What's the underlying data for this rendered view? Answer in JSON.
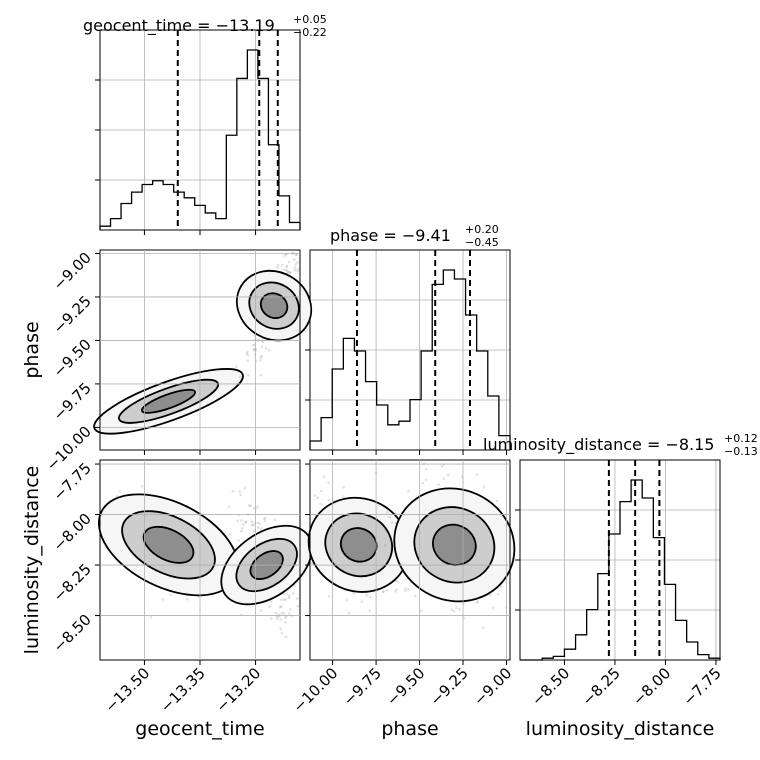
{
  "chart_data": {
    "type": "corner",
    "parameters": [
      "geocent_time",
      "phase",
      "luminosity_distance"
    ],
    "axis_labels": {
      "geocent_time": "geocent_time",
      "phase": "phase",
      "luminosity_distance": "luminosity_distance"
    },
    "titles": [
      {
        "param": "geocent_time",
        "prefix": "geocent_time = −13.19",
        "plus": "+0.05",
        "minus": "−0.22"
      },
      {
        "param": "phase",
        "prefix": "phase = −9.41",
        "plus": "+0.20",
        "minus": "−0.45"
      },
      {
        "param": "luminosity_distance",
        "prefix": "luminosity_distance = −8.15",
        "plus": "+0.12",
        "minus": "−0.13"
      }
    ],
    "ranges": {
      "geocent_time": [
        -13.62,
        -13.08
      ],
      "phase": [
        -10.13,
        -8.98
      ],
      "luminosity_distance": [
        -8.72,
        -7.73
      ]
    },
    "ticks": {
      "geocent_time": [
        {
          "v": -13.5,
          "label": "−13.50"
        },
        {
          "v": -13.35,
          "label": "−13.35"
        },
        {
          "v": -13.2,
          "label": "−13.20"
        }
      ],
      "phase": [
        {
          "v": -10.0,
          "label": "−10.00"
        },
        {
          "v": -9.75,
          "label": "−9.75"
        },
        {
          "v": -9.5,
          "label": "−9.50"
        },
        {
          "v": -9.25,
          "label": "−9.25"
        },
        {
          "v": -9.0,
          "label": "−9.00"
        }
      ],
      "luminosity_distance": [
        {
          "v": -8.5,
          "label": "−8.50"
        },
        {
          "v": -8.25,
          "label": "−8.25"
        },
        {
          "v": -8.0,
          "label": "−8.00"
        },
        {
          "v": -7.75,
          "label": "−7.75"
        }
      ]
    },
    "y_tick_labels": {
      "phase": [
        "−9.00",
        "−9.25",
        "−9.50",
        "−9.75",
        "−10.00"
      ],
      "luminosity_distance": [
        "−7.75",
        "−8.00",
        "−8.25",
        "−8.50"
      ]
    },
    "histograms": {
      "geocent_time": [
        0.02,
        0.06,
        0.14,
        0.2,
        0.24,
        0.26,
        0.24,
        0.2,
        0.17,
        0.13,
        0.09,
        0.06,
        0.5,
        0.8,
        0.95,
        0.8,
        0.45,
        0.18,
        0.04
      ],
      "phase": [
        0.05,
        0.18,
        0.45,
        0.62,
        0.55,
        0.38,
        0.25,
        0.14,
        0.16,
        0.28,
        0.55,
        0.92,
        1.0,
        0.95,
        0.75,
        0.55,
        0.3,
        0.08
      ],
      "luminosity_distance": [
        0.0,
        0.0,
        0.01,
        0.02,
        0.06,
        0.14,
        0.28,
        0.48,
        0.7,
        0.88,
        1.0,
        0.9,
        0.68,
        0.42,
        0.22,
        0.1,
        0.03,
        0.01
      ]
    },
    "quantiles": {
      "geocent_time": [
        -13.41,
        -13.19,
        -13.14
      ],
      "phase": [
        -9.86,
        -9.41,
        -9.21
      ],
      "luminosity_distance": [
        -8.28,
        -8.15,
        -8.03
      ]
    },
    "scatter_clusters": [
      {
        "panel": "phase_vs_geocent_time",
        "x": [
          -13.6,
          -13.27
        ],
        "y": [
          -10.0,
          -9.7
        ],
        "n": 180
      },
      {
        "panel": "phase_vs_geocent_time",
        "x": [
          -13.22,
          -13.08
        ],
        "y": [
          -9.6,
          -9.0
        ],
        "n": 260
      },
      {
        "panel": "luminosity_distance_vs_geocent_time",
        "x": [
          -13.6,
          -13.27
        ],
        "y": [
          -8.4,
          -7.9
        ],
        "n": 220
      },
      {
        "panel": "luminosity_distance_vs_geocent_time",
        "x": [
          -13.24,
          -13.1
        ],
        "y": [
          -8.55,
          -7.95
        ],
        "n": 220
      },
      {
        "panel": "luminosity_distance_vs_phase",
        "x": [
          -10.1,
          -9.6
        ],
        "y": [
          -8.4,
          -7.9
        ],
        "n": 220
      },
      {
        "panel": "luminosity_distance_vs_phase",
        "x": [
          -9.6,
          -9.0
        ],
        "y": [
          -8.45,
          -7.85
        ],
        "n": 320
      }
    ]
  }
}
